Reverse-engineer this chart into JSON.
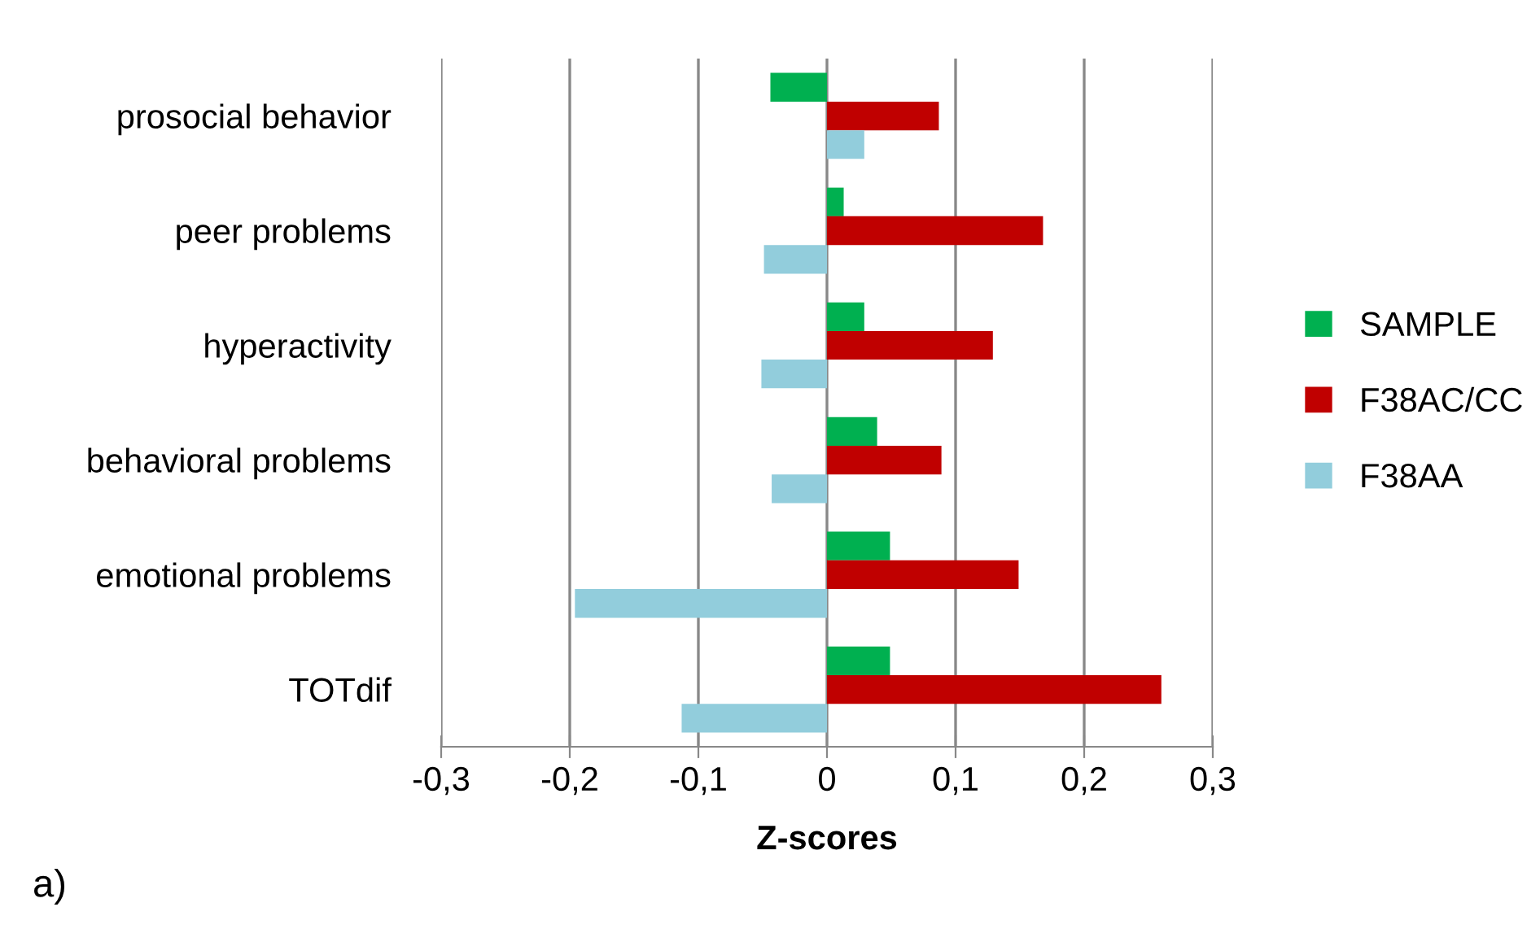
{
  "chart_data": {
    "type": "bar",
    "orientation": "horizontal",
    "xlabel": "Z-scores",
    "annotations": [
      "a)"
    ],
    "categories": [
      "prosocial behavior",
      "peer problems",
      "hyperactivity",
      "behavioral problems",
      "emotional problems",
      "TOTdif"
    ],
    "series": [
      {
        "name": "SAMPLE",
        "color": "#00b050",
        "values": [
          -0.044,
          0.013,
          0.029,
          0.039,
          0.049,
          0.049
        ]
      },
      {
        "name": "F38AC/CC",
        "color": "#c00000",
        "values": [
          0.087,
          0.168,
          0.129,
          0.089,
          0.149,
          0.26
        ]
      },
      {
        "name": "F38AA",
        "color": "#92cddc",
        "values": [
          0.029,
          -0.049,
          -0.051,
          -0.043,
          -0.196,
          -0.113
        ]
      }
    ],
    "xlim": [
      -0.3,
      0.3
    ],
    "xticks": [
      {
        "value": -0.3,
        "label": "-0,3"
      },
      {
        "value": -0.2,
        "label": "-0,2"
      },
      {
        "value": -0.1,
        "label": "-0,1"
      },
      0,
      {
        "value": 0.1,
        "label": "0,1"
      },
      {
        "value": 0.2,
        "label": "0,2"
      },
      {
        "value": 0.3,
        "label": "0,3"
      }
    ],
    "grid": "x",
    "legend": "right"
  }
}
